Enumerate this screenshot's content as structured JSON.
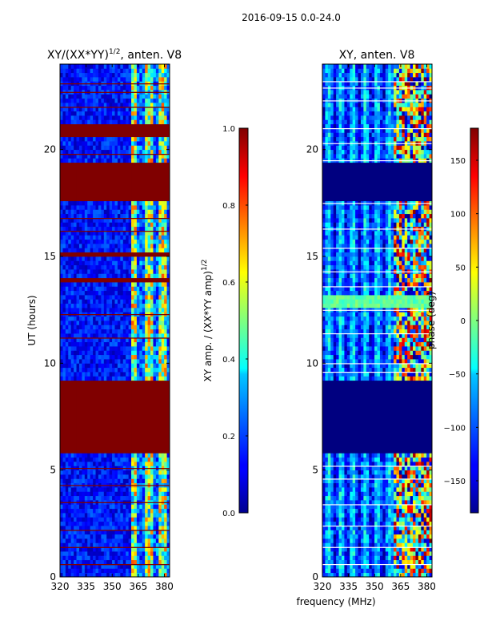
{
  "chart_data": [
    {
      "type": "heatmap",
      "suptitle": "2016-09-15 0.0-24.0",
      "title_main": "XY/(XX*YY)",
      "title_sup": "1/2",
      "title_tail": ", anten. V8",
      "xlabel": "",
      "ylabel": "UT (hours)",
      "xlim": [
        320,
        383
      ],
      "ylim": [
        0,
        24
      ],
      "xticks": [
        320,
        335,
        350,
        365,
        380
      ],
      "yticks": [
        0,
        5,
        10,
        15,
        20
      ],
      "band_start_mhz": 360,
      "bands_mhz": [
        360.5,
        364.5,
        368.5,
        372.5,
        376.5,
        380.5
      ],
      "saturated_blocks_hours": [
        [
          5.8,
          9.3
        ],
        [
          17.6,
          19.5
        ],
        [
          13.8,
          14.1
        ],
        [
          15.1,
          15.3
        ],
        [
          20.6,
          21.2
        ]
      ],
      "colorbar": {
        "label_main": "XY amp. / (XX*YY amp)",
        "label_sup": "1/2",
        "range": [
          0.0,
          1.0
        ],
        "ticks": [
          "0.0",
          "0.2",
          "0.4",
          "0.6",
          "0.8",
          "1.0"
        ],
        "tick_values": [
          0.0,
          0.2,
          0.4,
          0.6,
          0.8,
          1.0
        ],
        "colormap": "jet"
      }
    },
    {
      "type": "heatmap",
      "title": "XY, anten. V8",
      "xlabel": "frequency (MHz)",
      "ylabel": "",
      "xlim": [
        320,
        383
      ],
      "ylim": [
        0,
        24
      ],
      "xticks": [
        320,
        335,
        350,
        365,
        380
      ],
      "yticks": [
        0,
        5,
        10,
        15,
        20
      ],
      "blank_blocks_hours": [
        [
          5.8,
          9.3
        ],
        [
          17.6,
          19.5
        ]
      ],
      "green_block_hours": [
        12.6,
        13.3
      ],
      "colorbar": {
        "label": "phase (deg)",
        "range": [
          -180,
          180
        ],
        "ticks": [
          "−150",
          "−100",
          "−50",
          "0",
          "50",
          "100",
          "150"
        ],
        "tick_values": [
          -150,
          -100,
          -50,
          0,
          50,
          100,
          150
        ],
        "colormap": "jet"
      }
    }
  ],
  "colors": {
    "dark_blue": "#00008f",
    "dark_red": "#800000",
    "background": "#ffffff"
  }
}
